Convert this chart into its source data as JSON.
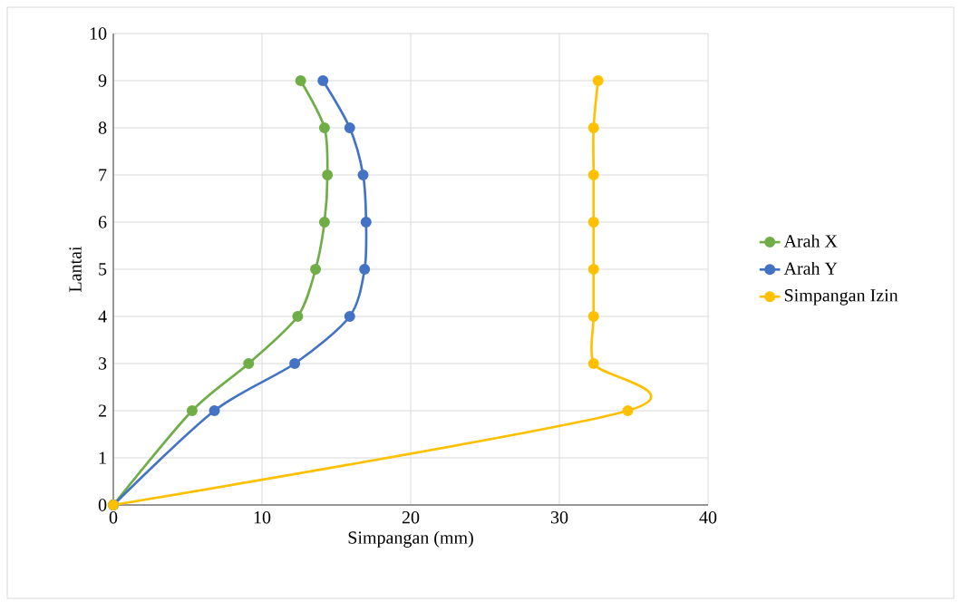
{
  "chart_data": {
    "type": "line",
    "xlabel": "Simpangan (mm)",
    "ylabel": "Lantai",
    "xlim": [
      0,
      40
    ],
    "ylim": [
      0,
      10
    ],
    "xticks": [
      0,
      10,
      20,
      30,
      40
    ],
    "yticks": [
      0,
      1,
      2,
      3,
      4,
      5,
      6,
      7,
      8,
      9,
      10
    ],
    "grid": true,
    "legend": "right",
    "marker": "circle",
    "line_style": "solid",
    "series": [
      {
        "name": "Arah X",
        "color": "#70ad47",
        "x": [
          0,
          5.3,
          9.1,
          12.4,
          13.6,
          14.2,
          14.4,
          14.2,
          12.6
        ],
        "values": [
          0,
          2,
          3,
          4,
          5,
          6,
          7,
          8,
          9
        ]
      },
      {
        "name": "Arah Y",
        "color": "#4472c4",
        "x": [
          0,
          6.8,
          12.2,
          15.9,
          16.9,
          17.0,
          16.8,
          15.9,
          14.1
        ],
        "values": [
          0,
          2,
          3,
          4,
          5,
          6,
          7,
          8,
          9
        ]
      },
      {
        "name": "Simpangan Izin",
        "color": "#ffc000",
        "x": [
          0,
          34.6,
          32.3,
          32.3,
          32.3,
          32.3,
          32.3,
          32.3,
          32.6
        ],
        "values": [
          0,
          2,
          3,
          4,
          5,
          6,
          7,
          8,
          9
        ]
      }
    ]
  }
}
